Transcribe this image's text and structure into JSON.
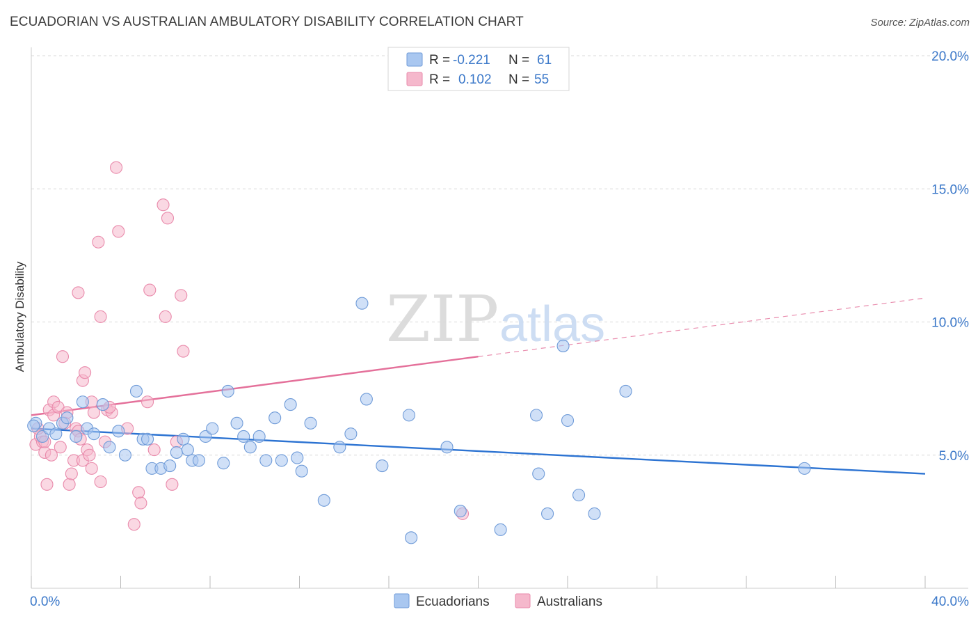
{
  "title": "ECUADORIAN VS AUSTRALIAN AMBULATORY DISABILITY CORRELATION CHART",
  "source": "Source: ZipAtlas.com",
  "watermark": {
    "zip": "ZIP",
    "atlas": "atlas"
  },
  "colors": {
    "blue_fill": "#a9c7f0",
    "blue_stroke": "#6f9bd8",
    "blue_line": "#2c73d2",
    "pink_fill": "#f5b8cc",
    "pink_stroke": "#e98aab",
    "pink_line": "#e4709a",
    "value_text": "#3b78c9",
    "grid": "#d8d8d8"
  },
  "legend": {
    "rows": [
      {
        "r_label": "R =",
        "r_value": "-0.221",
        "n_label": "N =",
        "n_value": "61",
        "series": "blue"
      },
      {
        "r_label": "R =",
        "r_value": "0.102",
        "n_label": "N =",
        "n_value": "55",
        "series": "pink"
      }
    ]
  },
  "chart_data": {
    "type": "scatter",
    "title": "ECUADORIAN VS AUSTRALIAN AMBULATORY DISABILITY CORRELATION CHART",
    "xlabel": "",
    "ylabel": "Ambulatory Disability",
    "xlim": [
      0,
      40
    ],
    "ylim": [
      0,
      20
    ],
    "x_tick_labels": [
      "0.0%",
      "40.0%"
    ],
    "y_ticks": [
      {
        "value": 5,
        "label": "5.0%"
      },
      {
        "value": 10,
        "label": "10.0%"
      },
      {
        "value": 15,
        "label": "15.0%"
      },
      {
        "value": 20,
        "label": "20.0%"
      }
    ],
    "bottom_legend": [
      "Ecuadorians",
      "Australians"
    ],
    "series": [
      {
        "name": "Ecuadorians",
        "color": "blue",
        "trend": {
          "x0": 0,
          "y0": 6.0,
          "x1": 40,
          "y1": 4.3,
          "dashed_from": null
        },
        "points": [
          [
            0.2,
            6.2
          ],
          [
            0.5,
            5.7
          ],
          [
            0.8,
            6.0
          ],
          [
            1.1,
            5.8
          ],
          [
            1.4,
            6.2
          ],
          [
            1.6,
            6.4
          ],
          [
            2.0,
            5.7
          ],
          [
            2.3,
            7.0
          ],
          [
            2.5,
            6.0
          ],
          [
            2.8,
            5.8
          ],
          [
            3.2,
            6.9
          ],
          [
            3.5,
            5.3
          ],
          [
            3.9,
            5.9
          ],
          [
            4.2,
            5.0
          ],
          [
            4.7,
            7.4
          ],
          [
            5.0,
            5.6
          ],
          [
            5.2,
            5.6
          ],
          [
            5.4,
            4.5
          ],
          [
            5.8,
            4.5
          ],
          [
            6.2,
            4.6
          ],
          [
            6.5,
            5.1
          ],
          [
            6.8,
            5.6
          ],
          [
            7.0,
            5.2
          ],
          [
            7.2,
            4.8
          ],
          [
            7.5,
            4.8
          ],
          [
            7.8,
            5.7
          ],
          [
            8.1,
            6.0
          ],
          [
            8.6,
            4.7
          ],
          [
            8.8,
            7.4
          ],
          [
            9.2,
            6.2
          ],
          [
            9.5,
            5.7
          ],
          [
            9.8,
            5.3
          ],
          [
            10.2,
            5.7
          ],
          [
            10.5,
            4.8
          ],
          [
            10.9,
            6.4
          ],
          [
            11.2,
            4.8
          ],
          [
            11.6,
            6.9
          ],
          [
            11.9,
            4.9
          ],
          [
            12.1,
            4.4
          ],
          [
            12.5,
            6.2
          ],
          [
            13.1,
            3.3
          ],
          [
            13.8,
            5.3
          ],
          [
            14.3,
            5.8
          ],
          [
            14.8,
            10.7
          ],
          [
            15.0,
            7.1
          ],
          [
            15.7,
            4.6
          ],
          [
            17.0,
            1.9
          ],
          [
            16.9,
            6.5
          ],
          [
            18.6,
            5.3
          ],
          [
            19.2,
            2.9
          ],
          [
            21.0,
            2.2
          ],
          [
            22.6,
            6.5
          ],
          [
            22.7,
            4.3
          ],
          [
            23.1,
            2.8
          ],
          [
            23.8,
            9.1
          ],
          [
            24.0,
            6.3
          ],
          [
            24.5,
            3.5
          ],
          [
            25.2,
            2.8
          ],
          [
            26.6,
            7.4
          ],
          [
            34.6,
            4.5
          ],
          [
            0.1,
            6.1
          ]
        ]
      },
      {
        "name": "Australians",
        "color": "pink",
        "trend": {
          "x0": 0,
          "y0": 6.5,
          "x1": 40,
          "y1": 10.9,
          "dashed_from": 20
        },
        "points": [
          [
            0.2,
            5.4
          ],
          [
            0.4,
            5.7
          ],
          [
            0.5,
            5.5
          ],
          [
            0.6,
            5.1
          ],
          [
            0.7,
            3.9
          ],
          [
            0.8,
            6.7
          ],
          [
            1.0,
            6.5
          ],
          [
            1.0,
            7.0
          ],
          [
            1.2,
            6.8
          ],
          [
            1.3,
            5.3
          ],
          [
            1.4,
            8.7
          ],
          [
            1.6,
            6.6
          ],
          [
            1.7,
            3.9
          ],
          [
            1.8,
            4.3
          ],
          [
            1.9,
            4.8
          ],
          [
            2.0,
            6.0
          ],
          [
            2.1,
            5.9
          ],
          [
            2.1,
            11.1
          ],
          [
            2.3,
            4.8
          ],
          [
            2.3,
            7.8
          ],
          [
            2.4,
            8.1
          ],
          [
            2.5,
            5.2
          ],
          [
            2.6,
            5.0
          ],
          [
            2.7,
            4.5
          ],
          [
            2.7,
            7.0
          ],
          [
            2.8,
            6.6
          ],
          [
            3.0,
            13.0
          ],
          [
            3.1,
            4.0
          ],
          [
            3.1,
            10.2
          ],
          [
            3.3,
            5.5
          ],
          [
            3.4,
            6.7
          ],
          [
            3.6,
            6.6
          ],
          [
            3.8,
            15.8
          ],
          [
            3.9,
            13.4
          ],
          [
            4.3,
            6.0
          ],
          [
            4.6,
            2.4
          ],
          [
            4.8,
            3.6
          ],
          [
            4.9,
            3.2
          ],
          [
            5.2,
            7.0
          ],
          [
            5.3,
            11.2
          ],
          [
            5.5,
            5.2
          ],
          [
            5.9,
            14.4
          ],
          [
            6.0,
            10.2
          ],
          [
            6.1,
            13.9
          ],
          [
            6.3,
            3.9
          ],
          [
            6.5,
            5.5
          ],
          [
            6.7,
            11.0
          ],
          [
            6.8,
            8.9
          ],
          [
            19.3,
            2.8
          ],
          [
            0.3,
            6.0
          ],
          [
            0.9,
            5.0
          ],
          [
            1.5,
            6.2
          ],
          [
            2.2,
            5.6
          ],
          [
            3.5,
            6.8
          ],
          [
            0.6,
            5.5
          ]
        ]
      }
    ]
  }
}
